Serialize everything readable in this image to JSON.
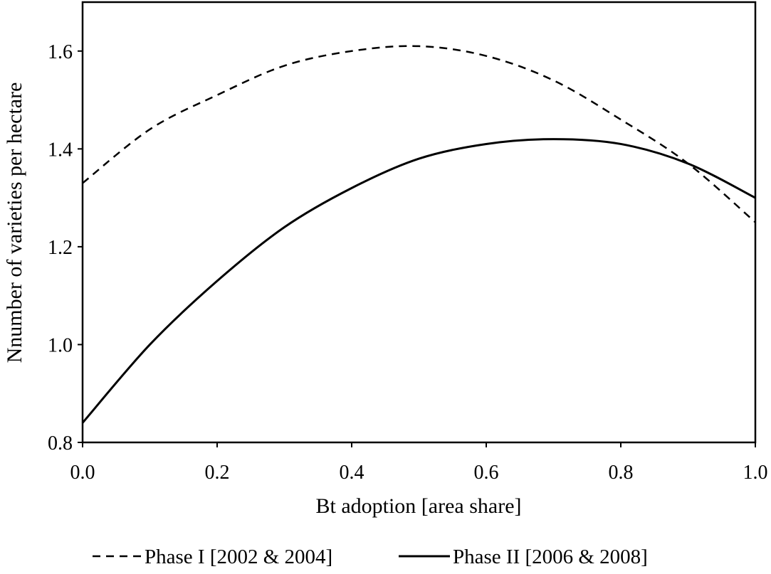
{
  "chart_data": {
    "type": "line",
    "title": "",
    "xlabel": "Bt adoption [area share]",
    "ylabel": "Nnumber of varieties per hectare",
    "xlim": [
      0,
      1
    ],
    "ylim": [
      0.8,
      1.7
    ],
    "grid": false,
    "legend_position": "bottom",
    "x_ticks": [
      "0.0",
      "0.2",
      "0.4",
      "0.6",
      "0.8",
      "1.0"
    ],
    "y_ticks": [
      "0.8",
      "1.0",
      "1.2",
      "1.4",
      "1.6"
    ],
    "x": [
      0.0,
      0.1,
      0.2,
      0.3,
      0.4,
      0.5,
      0.6,
      0.7,
      0.8,
      0.9,
      1.0
    ],
    "series": [
      {
        "name": "Phase I [2002 & 2004]",
        "style": "dashed",
        "color": "#000000",
        "values": [
          1.33,
          1.44,
          1.51,
          1.57,
          1.6,
          1.61,
          1.59,
          1.54,
          1.46,
          1.37,
          1.25
        ]
      },
      {
        "name": "Phase II [2006 & 2008]",
        "style": "solid",
        "color": "#000000",
        "values": [
          0.84,
          1.0,
          1.13,
          1.24,
          1.32,
          1.38,
          1.41,
          1.42,
          1.41,
          1.37,
          1.3
        ]
      }
    ]
  }
}
